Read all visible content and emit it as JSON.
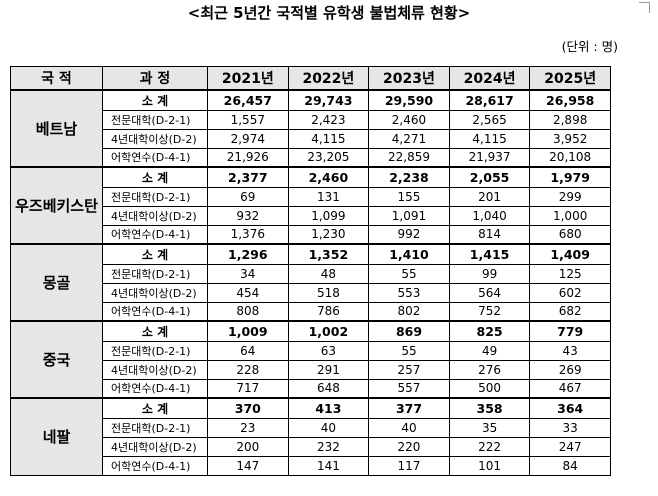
{
  "title": "<최근 5년간 국적별 유학생 불법체류 현황>",
  "unit": "(단위 : 명)",
  "headers": {
    "country": "국 적",
    "course": "과 정",
    "years": [
      "2021년",
      "2022년",
      "2023년",
      "2024년",
      "2025년"
    ]
  },
  "groups": [
    {
      "country": "베트남",
      "rows": [
        {
          "course": "소 계",
          "values": [
            "26,457",
            "29,743",
            "29,590",
            "28,617",
            "26,958"
          ]
        },
        {
          "course": "전문대학(D-2-1)",
          "values": [
            "1,557",
            "2,423",
            "2,460",
            "2,565",
            "2,898"
          ]
        },
        {
          "course": "4년대학이상(D-2)",
          "values": [
            "2,974",
            "4,115",
            "4,271",
            "4,115",
            "3,952"
          ]
        },
        {
          "course": "어학연수(D-4-1)",
          "values": [
            "21,926",
            "23,205",
            "22,859",
            "21,937",
            "20,108"
          ]
        }
      ]
    },
    {
      "country": "우즈베키스탄",
      "rows": [
        {
          "course": "소 계",
          "values": [
            "2,377",
            "2,460",
            "2,238",
            "2,055",
            "1,979"
          ]
        },
        {
          "course": "전문대학(D-2-1)",
          "values": [
            "69",
            "131",
            "155",
            "201",
            "299"
          ]
        },
        {
          "course": "4년대학이상(D-2)",
          "values": [
            "932",
            "1,099",
            "1,091",
            "1,040",
            "1,000"
          ]
        },
        {
          "course": "어학연수(D-4-1)",
          "values": [
            "1,376",
            "1,230",
            "992",
            "814",
            "680"
          ]
        }
      ]
    },
    {
      "country": "몽골",
      "rows": [
        {
          "course": "소 계",
          "values": [
            "1,296",
            "1,352",
            "1,410",
            "1,415",
            "1,409"
          ]
        },
        {
          "course": "전문대학(D-2-1)",
          "values": [
            "34",
            "48",
            "55",
            "99",
            "125"
          ]
        },
        {
          "course": "4년대학이상(D-2)",
          "values": [
            "454",
            "518",
            "553",
            "564",
            "602"
          ]
        },
        {
          "course": "어학연수(D-4-1)",
          "values": [
            "808",
            "786",
            "802",
            "752",
            "682"
          ]
        }
      ]
    },
    {
      "country": "중국",
      "rows": [
        {
          "course": "소 계",
          "values": [
            "1,009",
            "1,002",
            "869",
            "825",
            "779"
          ]
        },
        {
          "course": "전문대학(D-2-1)",
          "values": [
            "64",
            "63",
            "55",
            "49",
            "43"
          ]
        },
        {
          "course": "4년대학이상(D-2)",
          "values": [
            "228",
            "291",
            "257",
            "276",
            "269"
          ]
        },
        {
          "course": "어학연수(D-4-1)",
          "values": [
            "717",
            "648",
            "557",
            "500",
            "467"
          ]
        }
      ]
    },
    {
      "country": "네팔",
      "rows": [
        {
          "course": "소 계",
          "values": [
            "370",
            "413",
            "377",
            "358",
            "364"
          ]
        },
        {
          "course": "전문대학(D-2-1)",
          "values": [
            "23",
            "40",
            "40",
            "35",
            "33"
          ]
        },
        {
          "course": "4년대학이상(D-2)",
          "values": [
            "200",
            "232",
            "220",
            "222",
            "247"
          ]
        },
        {
          "course": "어학연수(D-4-1)",
          "values": [
            "147",
            "141",
            "117",
            "101",
            "84"
          ]
        }
      ]
    }
  ]
}
